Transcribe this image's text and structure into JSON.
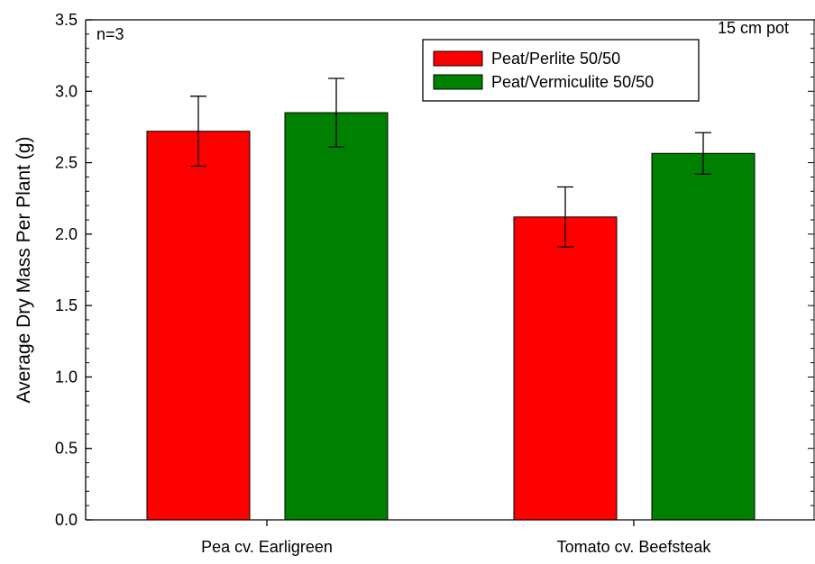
{
  "chart_data": {
    "type": "bar",
    "title": "",
    "xlabel": "",
    "ylabel": "Average Dry Mass Per Plant (g)",
    "categories": [
      "Pea cv. Earligreen",
      "Tomato cv. Beefsteak"
    ],
    "series": [
      {
        "name": "Peat/Perlite 50/50",
        "color": "#ff0000",
        "values": [
          2.72,
          2.12
        ],
        "errors": [
          0.245,
          0.21
        ]
      },
      {
        "name": "Peat/Vermiculite 50/50",
        "color": "#008000",
        "values": [
          2.85,
          2.565
        ],
        "errors": [
          0.24,
          0.145
        ]
      }
    ],
    "ylim": [
      0,
      3.5
    ],
    "yticks": [
      "0.0",
      "0.5",
      "1.0",
      "1.5",
      "2.0",
      "2.5",
      "3.0",
      "3.5"
    ],
    "grid": false,
    "legend_position": "top-right",
    "annotations": {
      "top_left": "n=3",
      "top_right": "15 cm pot"
    }
  }
}
